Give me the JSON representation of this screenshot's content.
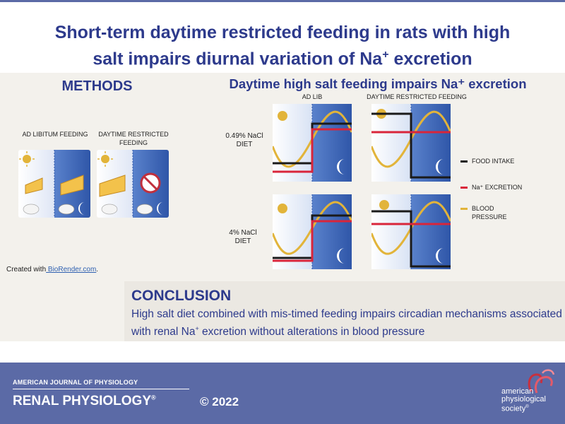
{
  "title": {
    "line1": "Short-term daytime restricted feeding in rats with high",
    "line2a": "salt impairs diurnal variation of Na",
    "line2sup": "+",
    "line2b": " excretion"
  },
  "methods": {
    "heading": "METHODS",
    "ad_lib_label": "AD LIBITUM FEEDING",
    "restricted_label": "DAYTIME RESTRICTED FEEDING",
    "credit_prefix": "Created with",
    "credit_link": " BioRender.com",
    "credit_suffix": "."
  },
  "results": {
    "heading": "Daytime high salt feeding impairs Na⁺ excretion",
    "col_ad_lib": "AD LIB",
    "col_restricted": "DAYTIME RESTRICTED FEEDING",
    "row_low_salt": "0.49% NaCl DIET",
    "row_high_salt": "4% NaCl DIET"
  },
  "legend": [
    {
      "label": "FOOD INTAKE",
      "color": "#1a1a1a"
    },
    {
      "label": "Na⁺ EXCRETION",
      "color": "#d9253a"
    },
    {
      "label": "BLOOD PRESSURE",
      "color": "#e2b43a"
    }
  ],
  "conclusion": {
    "heading": "CONCLUSION",
    "text_a": "High salt diet combined with mis-timed feeding impairs circadian mechanisms associated with renal Na",
    "text_sup": "+",
    "text_b": " excretion without alterations in blood pressure"
  },
  "footer": {
    "journal_top": "AMERICAN JOURNAL OF PHYSIOLOGY",
    "journal_name": "RENAL PHYSIOLOGY",
    "registered": "®",
    "year": "© 2022",
    "society_line1": "american",
    "society_line2": "physiological",
    "society_line3": "society",
    "society_tm": "®"
  },
  "colors": {
    "accent": "#2d3a8c",
    "footer": "#5b6aa6",
    "food": "#1a1a1a",
    "na": "#d9253a",
    "bp": "#e2b43a"
  }
}
